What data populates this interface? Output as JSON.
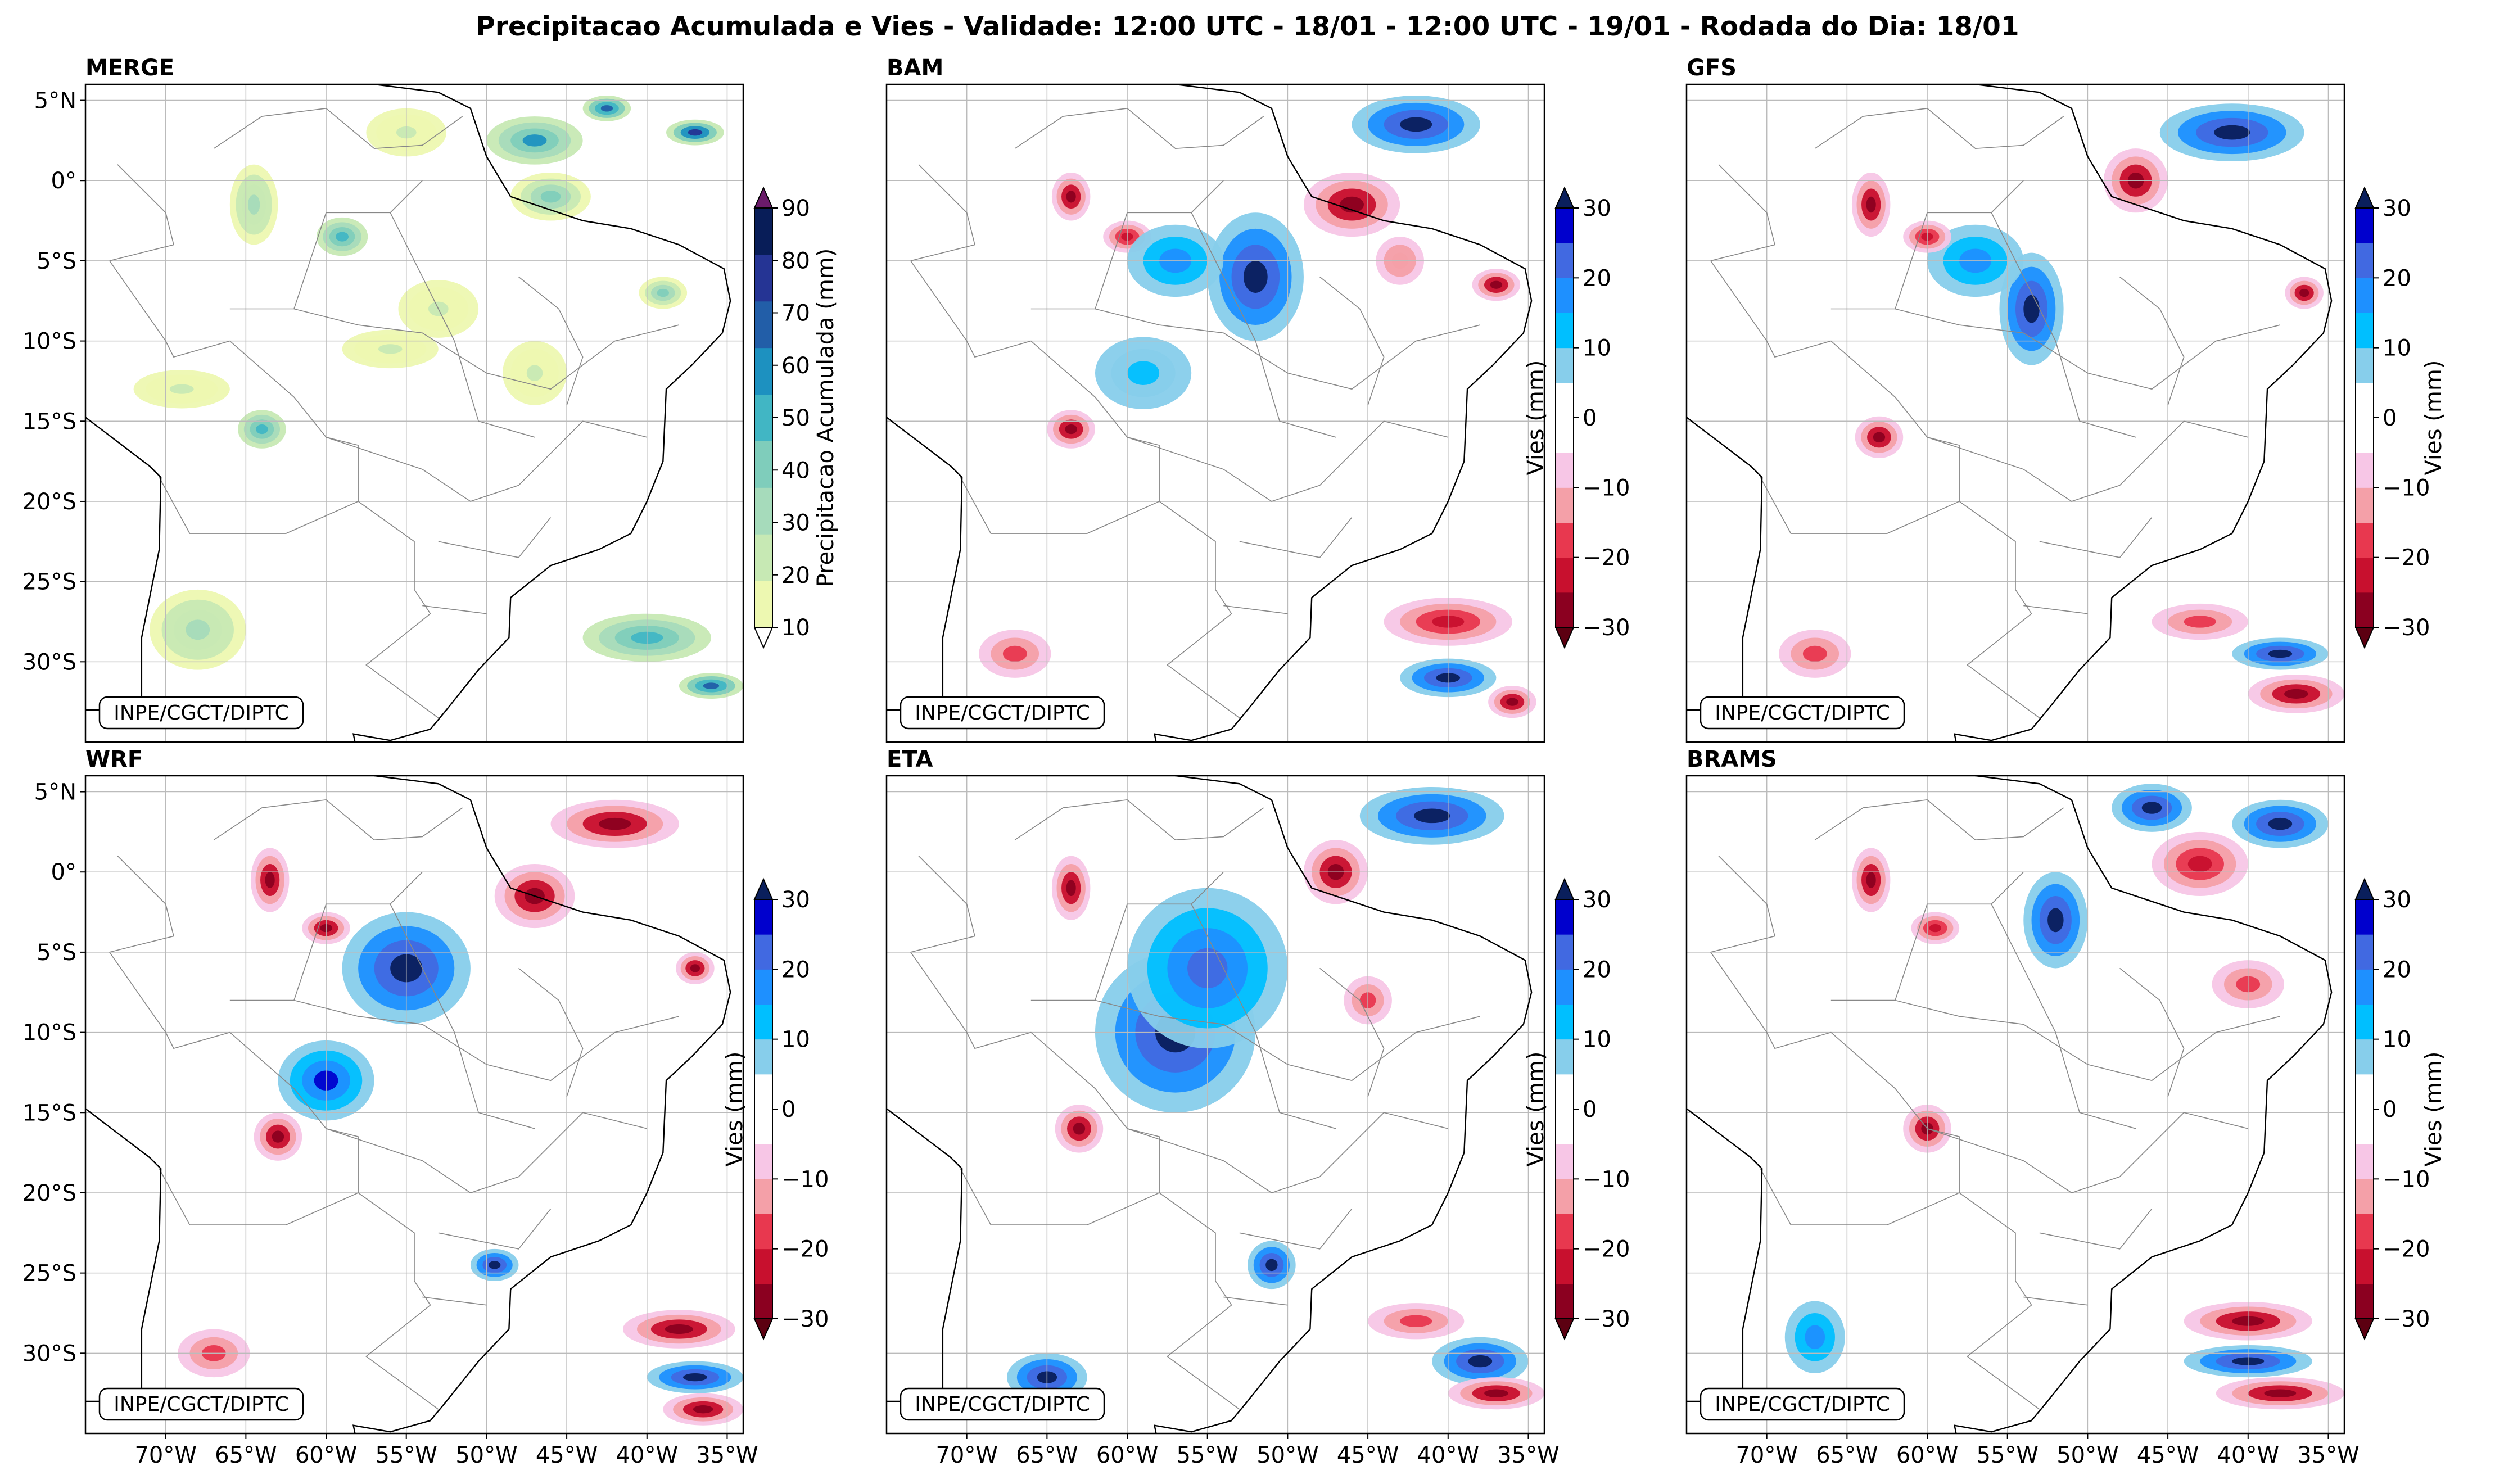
{
  "figure": {
    "title": "Precipitacao Acumulada e Vies - Validade: 12:00 UTC - 18/01 - 12:00 UTC - 19/01 - Rodada do Dia: 18/01",
    "credit": "INPE/CGCT/DIPTC"
  },
  "map_extent": {
    "lon_min": -75,
    "lon_max": -34,
    "lat_min": -35,
    "lat_max": 6
  },
  "lon_ticks": [
    {
      "value": -70,
      "label": "70°W"
    },
    {
      "value": -65,
      "label": "65°W"
    },
    {
      "value": -60,
      "label": "60°W"
    },
    {
      "value": -55,
      "label": "55°W"
    },
    {
      "value": -50,
      "label": "50°W"
    },
    {
      "value": -45,
      "label": "45°W"
    },
    {
      "value": -40,
      "label": "40°W"
    },
    {
      "value": -35,
      "label": "35°W"
    }
  ],
  "lat_ticks": [
    {
      "value": 5,
      "label": "5°N"
    },
    {
      "value": 0,
      "label": "0°"
    },
    {
      "value": -5,
      "label": "5°S"
    },
    {
      "value": -10,
      "label": "10°S"
    },
    {
      "value": -15,
      "label": "15°S"
    },
    {
      "value": -20,
      "label": "20°S"
    },
    {
      "value": -25,
      "label": "25°S"
    },
    {
      "value": -30,
      "label": "30°S"
    }
  ],
  "colorbars": {
    "precip": {
      "label": "Precipitacao Acumulada (mm)",
      "levels": [
        10,
        20,
        30,
        40,
        50,
        60,
        70,
        80,
        90
      ],
      "tick_labels": [
        "10",
        "20",
        "30",
        "40",
        "50",
        "60",
        "70",
        "80",
        "90"
      ],
      "colors": [
        "#edf8b1",
        "#c7e9b4",
        "#a6dbbb",
        "#7fcdbb",
        "#41b6c4",
        "#1d91c0",
        "#225ea8",
        "#253494",
        "#081d58"
      ],
      "under_color": "#ffffff",
      "over_color": "#6a1b6a"
    },
    "bias": {
      "label": "Vies (mm)",
      "levels": [
        -30,
        -25,
        -20,
        -15,
        -10,
        -5,
        0,
        5,
        10,
        15,
        20,
        25,
        30
      ],
      "tick_labels": [
        "−30",
        "−20",
        "−10",
        "0",
        "10",
        "20",
        "30"
      ],
      "tick_values": [
        -30,
        -20,
        -10,
        0,
        10,
        20,
        30
      ],
      "colors": [
        "#8b0020",
        "#c8102e",
        "#e8384f",
        "#f4a0a8",
        "#f7c6e6",
        "#ffffff",
        "#ffffff",
        "#87ceeb",
        "#00bfff",
        "#1e90ff",
        "#4169e1",
        "#0000cd"
      ],
      "under_color": "#5c0011",
      "over_color": "#0a1f5c"
    }
  },
  "panels": [
    {
      "name": "MERGE",
      "kind": "precip",
      "cbar": "precip",
      "show_lat": true,
      "show_lon": false,
      "features": [
        {
          "lon": -64.5,
          "lat": -1.5,
          "value": 30,
          "rx": 1.5,
          "ry": 2.5
        },
        {
          "lon": -59,
          "lat": -3.5,
          "value": 50,
          "rx": 1.6,
          "ry": 1.2
        },
        {
          "lon": -55,
          "lat": 3,
          "value": 20,
          "rx": 2.5,
          "ry": 1.5
        },
        {
          "lon": -47,
          "lat": 2.5,
          "value": 60,
          "rx": 3,
          "ry": 1.5
        },
        {
          "lon": -42.5,
          "lat": 4.5,
          "value": 70,
          "rx": 1.5,
          "ry": 0.8
        },
        {
          "lon": -37,
          "lat": 3,
          "value": 80,
          "rx": 1.8,
          "ry": 0.8
        },
        {
          "lon": -46,
          "lat": -1,
          "value": 40,
          "rx": 2.5,
          "ry": 1.5
        },
        {
          "lon": -39,
          "lat": -7,
          "value": 40,
          "rx": 1.5,
          "ry": 1
        },
        {
          "lon": -53,
          "lat": -8,
          "value": 20,
          "rx": 2.5,
          "ry": 1.8
        },
        {
          "lon": -64,
          "lat": -15.5,
          "value": 50,
          "rx": 1.5,
          "ry": 1.2
        },
        {
          "lon": -69,
          "lat": -13,
          "value": 20,
          "rx": 3,
          "ry": 1.2
        },
        {
          "lon": -47,
          "lat": -12,
          "value": 20,
          "rx": 2,
          "ry": 2
        },
        {
          "lon": -56,
          "lat": -10.5,
          "value": 20,
          "rx": 3,
          "ry": 1.2
        },
        {
          "lon": -40,
          "lat": -28.5,
          "value": 50,
          "rx": 4,
          "ry": 1.5
        },
        {
          "lon": -36,
          "lat": -31.5,
          "value": 70,
          "rx": 2,
          "ry": 0.8
        },
        {
          "lon": -68,
          "lat": -28,
          "value": 30,
          "rx": 3,
          "ry": 2.5
        }
      ]
    },
    {
      "name": "BAM",
      "kind": "bias",
      "cbar": "bias",
      "show_lat": false,
      "show_lon": false,
      "features": [
        {
          "lon": -42,
          "lat": 3.5,
          "value": 30,
          "rx": 4,
          "ry": 1.8
        },
        {
          "lon": -46,
          "lat": -1.5,
          "value": -30,
          "rx": 3,
          "ry": 2
        },
        {
          "lon": -63.5,
          "lat": -1,
          "value": -30,
          "rx": 1.2,
          "ry": 1.5
        },
        {
          "lon": -60,
          "lat": -3.5,
          "value": -25,
          "rx": 1.5,
          "ry": 1
        },
        {
          "lon": -52,
          "lat": -6,
          "value": 30,
          "rx": 3,
          "ry": 4
        },
        {
          "lon": -57,
          "lat": -5,
          "value": 15,
          "rx": 4,
          "ry": 3
        },
        {
          "lon": -59,
          "lat": -12,
          "value": 10,
          "rx": 4,
          "ry": 3
        },
        {
          "lon": -63.5,
          "lat": -15.5,
          "value": -30,
          "rx": 1.5,
          "ry": 1.2
        },
        {
          "lon": -40,
          "lat": -27.5,
          "value": -25,
          "rx": 4,
          "ry": 1.5
        },
        {
          "lon": -40,
          "lat": -31,
          "value": 30,
          "rx": 3,
          "ry": 1.2
        },
        {
          "lon": -36,
          "lat": -32.5,
          "value": -30,
          "rx": 1.5,
          "ry": 1
        },
        {
          "lon": -67,
          "lat": -29.5,
          "value": -20,
          "rx": 3,
          "ry": 2
        },
        {
          "lon": -37,
          "lat": -6.5,
          "value": -30,
          "rx": 1.5,
          "ry": 1
        },
        {
          "lon": -43,
          "lat": -5,
          "value": -15,
          "rx": 2,
          "ry": 2
        }
      ]
    },
    {
      "name": "GFS",
      "kind": "bias",
      "cbar": "bias",
      "show_lat": false,
      "show_lon": false,
      "features": [
        {
          "lon": -41,
          "lat": 3,
          "value": 30,
          "rx": 4.5,
          "ry": 1.8
        },
        {
          "lon": -47,
          "lat": 0,
          "value": -30,
          "rx": 2,
          "ry": 2
        },
        {
          "lon": -63.5,
          "lat": -1.5,
          "value": -30,
          "rx": 1.2,
          "ry": 2
        },
        {
          "lon": -53.5,
          "lat": -8,
          "value": 30,
          "rx": 2,
          "ry": 3.5
        },
        {
          "lon": -57,
          "lat": -5,
          "value": 15,
          "rx": 4,
          "ry": 3
        },
        {
          "lon": -60,
          "lat": -3.5,
          "value": -25,
          "rx": 1.5,
          "ry": 1
        },
        {
          "lon": -63,
          "lat": -16,
          "value": -30,
          "rx": 1.5,
          "ry": 1.3
        },
        {
          "lon": -38,
          "lat": -29.5,
          "value": 30,
          "rx": 3,
          "ry": 1
        },
        {
          "lon": -37,
          "lat": -32,
          "value": -30,
          "rx": 3,
          "ry": 1.2
        },
        {
          "lon": -43,
          "lat": -27.5,
          "value": -20,
          "rx": 4,
          "ry": 1.5
        },
        {
          "lon": -67,
          "lat": -29.5,
          "value": -20,
          "rx": 3,
          "ry": 2
        },
        {
          "lon": -36.5,
          "lat": -7,
          "value": -30,
          "rx": 1.2,
          "ry": 1
        }
      ]
    },
    {
      "name": "WRF",
      "kind": "bias",
      "cbar": "bias",
      "show_lat": true,
      "show_lon": true,
      "features": [
        {
          "lon": -42,
          "lat": 3,
          "value": -30,
          "rx": 4,
          "ry": 1.5
        },
        {
          "lon": -47,
          "lat": -1.5,
          "value": -30,
          "rx": 2.5,
          "ry": 2
        },
        {
          "lon": -63.5,
          "lat": -0.5,
          "value": -30,
          "rx": 1.2,
          "ry": 2
        },
        {
          "lon": -55,
          "lat": -6,
          "value": 30,
          "rx": 4,
          "ry": 3.5
        },
        {
          "lon": -60,
          "lat": -13,
          "value": 25,
          "rx": 3,
          "ry": 2.5
        },
        {
          "lon": -63,
          "lat": -16.5,
          "value": -30,
          "rx": 1.5,
          "ry": 1.5
        },
        {
          "lon": -60,
          "lat": -3.5,
          "value": -30,
          "rx": 1.5,
          "ry": 1
        },
        {
          "lon": -38,
          "lat": -28.5,
          "value": -30,
          "rx": 3.5,
          "ry": 1.2
        },
        {
          "lon": -37,
          "lat": -31.5,
          "value": 30,
          "rx": 3,
          "ry": 1
        },
        {
          "lon": -36.5,
          "lat": -33.5,
          "value": -30,
          "rx": 2.5,
          "ry": 1
        },
        {
          "lon": -67,
          "lat": -30,
          "value": -20,
          "rx": 3,
          "ry": 2
        },
        {
          "lon": -49.5,
          "lat": -24.5,
          "value": 30,
          "rx": 1.5,
          "ry": 1
        },
        {
          "lon": -37,
          "lat": -6,
          "value": -30,
          "rx": 1.2,
          "ry": 1
        }
      ]
    },
    {
      "name": "ETA",
      "kind": "bias",
      "cbar": "bias",
      "show_lat": false,
      "show_lon": true,
      "features": [
        {
          "lon": -41,
          "lat": 3.5,
          "value": 30,
          "rx": 4.5,
          "ry": 1.8
        },
        {
          "lon": -47,
          "lat": 0,
          "value": -30,
          "rx": 2,
          "ry": 2
        },
        {
          "lon": -63.5,
          "lat": -1,
          "value": -30,
          "rx": 1.2,
          "ry": 2
        },
        {
          "lon": -57,
          "lat": -10,
          "value": 30,
          "rx": 5,
          "ry": 5
        },
        {
          "lon": -55,
          "lat": -6,
          "value": 20,
          "rx": 5,
          "ry": 5
        },
        {
          "lon": -63,
          "lat": -16,
          "value": -30,
          "rx": 1.5,
          "ry": 1.5
        },
        {
          "lon": -51,
          "lat": -24.5,
          "value": 30,
          "rx": 1.5,
          "ry": 1.5
        },
        {
          "lon": -38,
          "lat": -30.5,
          "value": 30,
          "rx": 3,
          "ry": 1.5
        },
        {
          "lon": -37,
          "lat": -32.5,
          "value": -30,
          "rx": 3,
          "ry": 1
        },
        {
          "lon": -42,
          "lat": -28,
          "value": -20,
          "rx": 4,
          "ry": 1.5
        },
        {
          "lon": -65,
          "lat": -31.5,
          "value": 30,
          "rx": 2.5,
          "ry": 1.5
        },
        {
          "lon": -45,
          "lat": -8,
          "value": -20,
          "rx": 2,
          "ry": 2
        }
      ]
    },
    {
      "name": "BRAMS",
      "kind": "bias",
      "cbar": "bias",
      "show_lat": false,
      "show_lon": true,
      "features": [
        {
          "lon": -46,
          "lat": 4,
          "value": 30,
          "rx": 2.5,
          "ry": 1.5
        },
        {
          "lon": -38,
          "lat": 3,
          "value": 30,
          "rx": 3,
          "ry": 1.5
        },
        {
          "lon": -43,
          "lat": 0.5,
          "value": -25,
          "rx": 3,
          "ry": 2
        },
        {
          "lon": -63.5,
          "lat": -0.5,
          "value": -30,
          "rx": 1.2,
          "ry": 2
        },
        {
          "lon": -52,
          "lat": -3,
          "value": 30,
          "rx": 2,
          "ry": 3
        },
        {
          "lon": -59.5,
          "lat": -3.5,
          "value": -25,
          "rx": 1.5,
          "ry": 1
        },
        {
          "lon": -60,
          "lat": -16,
          "value": -30,
          "rx": 1.5,
          "ry": 1.5
        },
        {
          "lon": -40,
          "lat": -28,
          "value": -30,
          "rx": 4,
          "ry": 1.2
        },
        {
          "lon": -40,
          "lat": -30.5,
          "value": 30,
          "rx": 4,
          "ry": 1
        },
        {
          "lon": -38,
          "lat": -32.5,
          "value": -30,
          "rx": 4,
          "ry": 1
        },
        {
          "lon": -67,
          "lat": -29,
          "value": 15,
          "rx": 2.5,
          "ry": 3
        },
        {
          "lon": -40,
          "lat": -7,
          "value": -20,
          "rx": 3,
          "ry": 2
        }
      ]
    }
  ]
}
